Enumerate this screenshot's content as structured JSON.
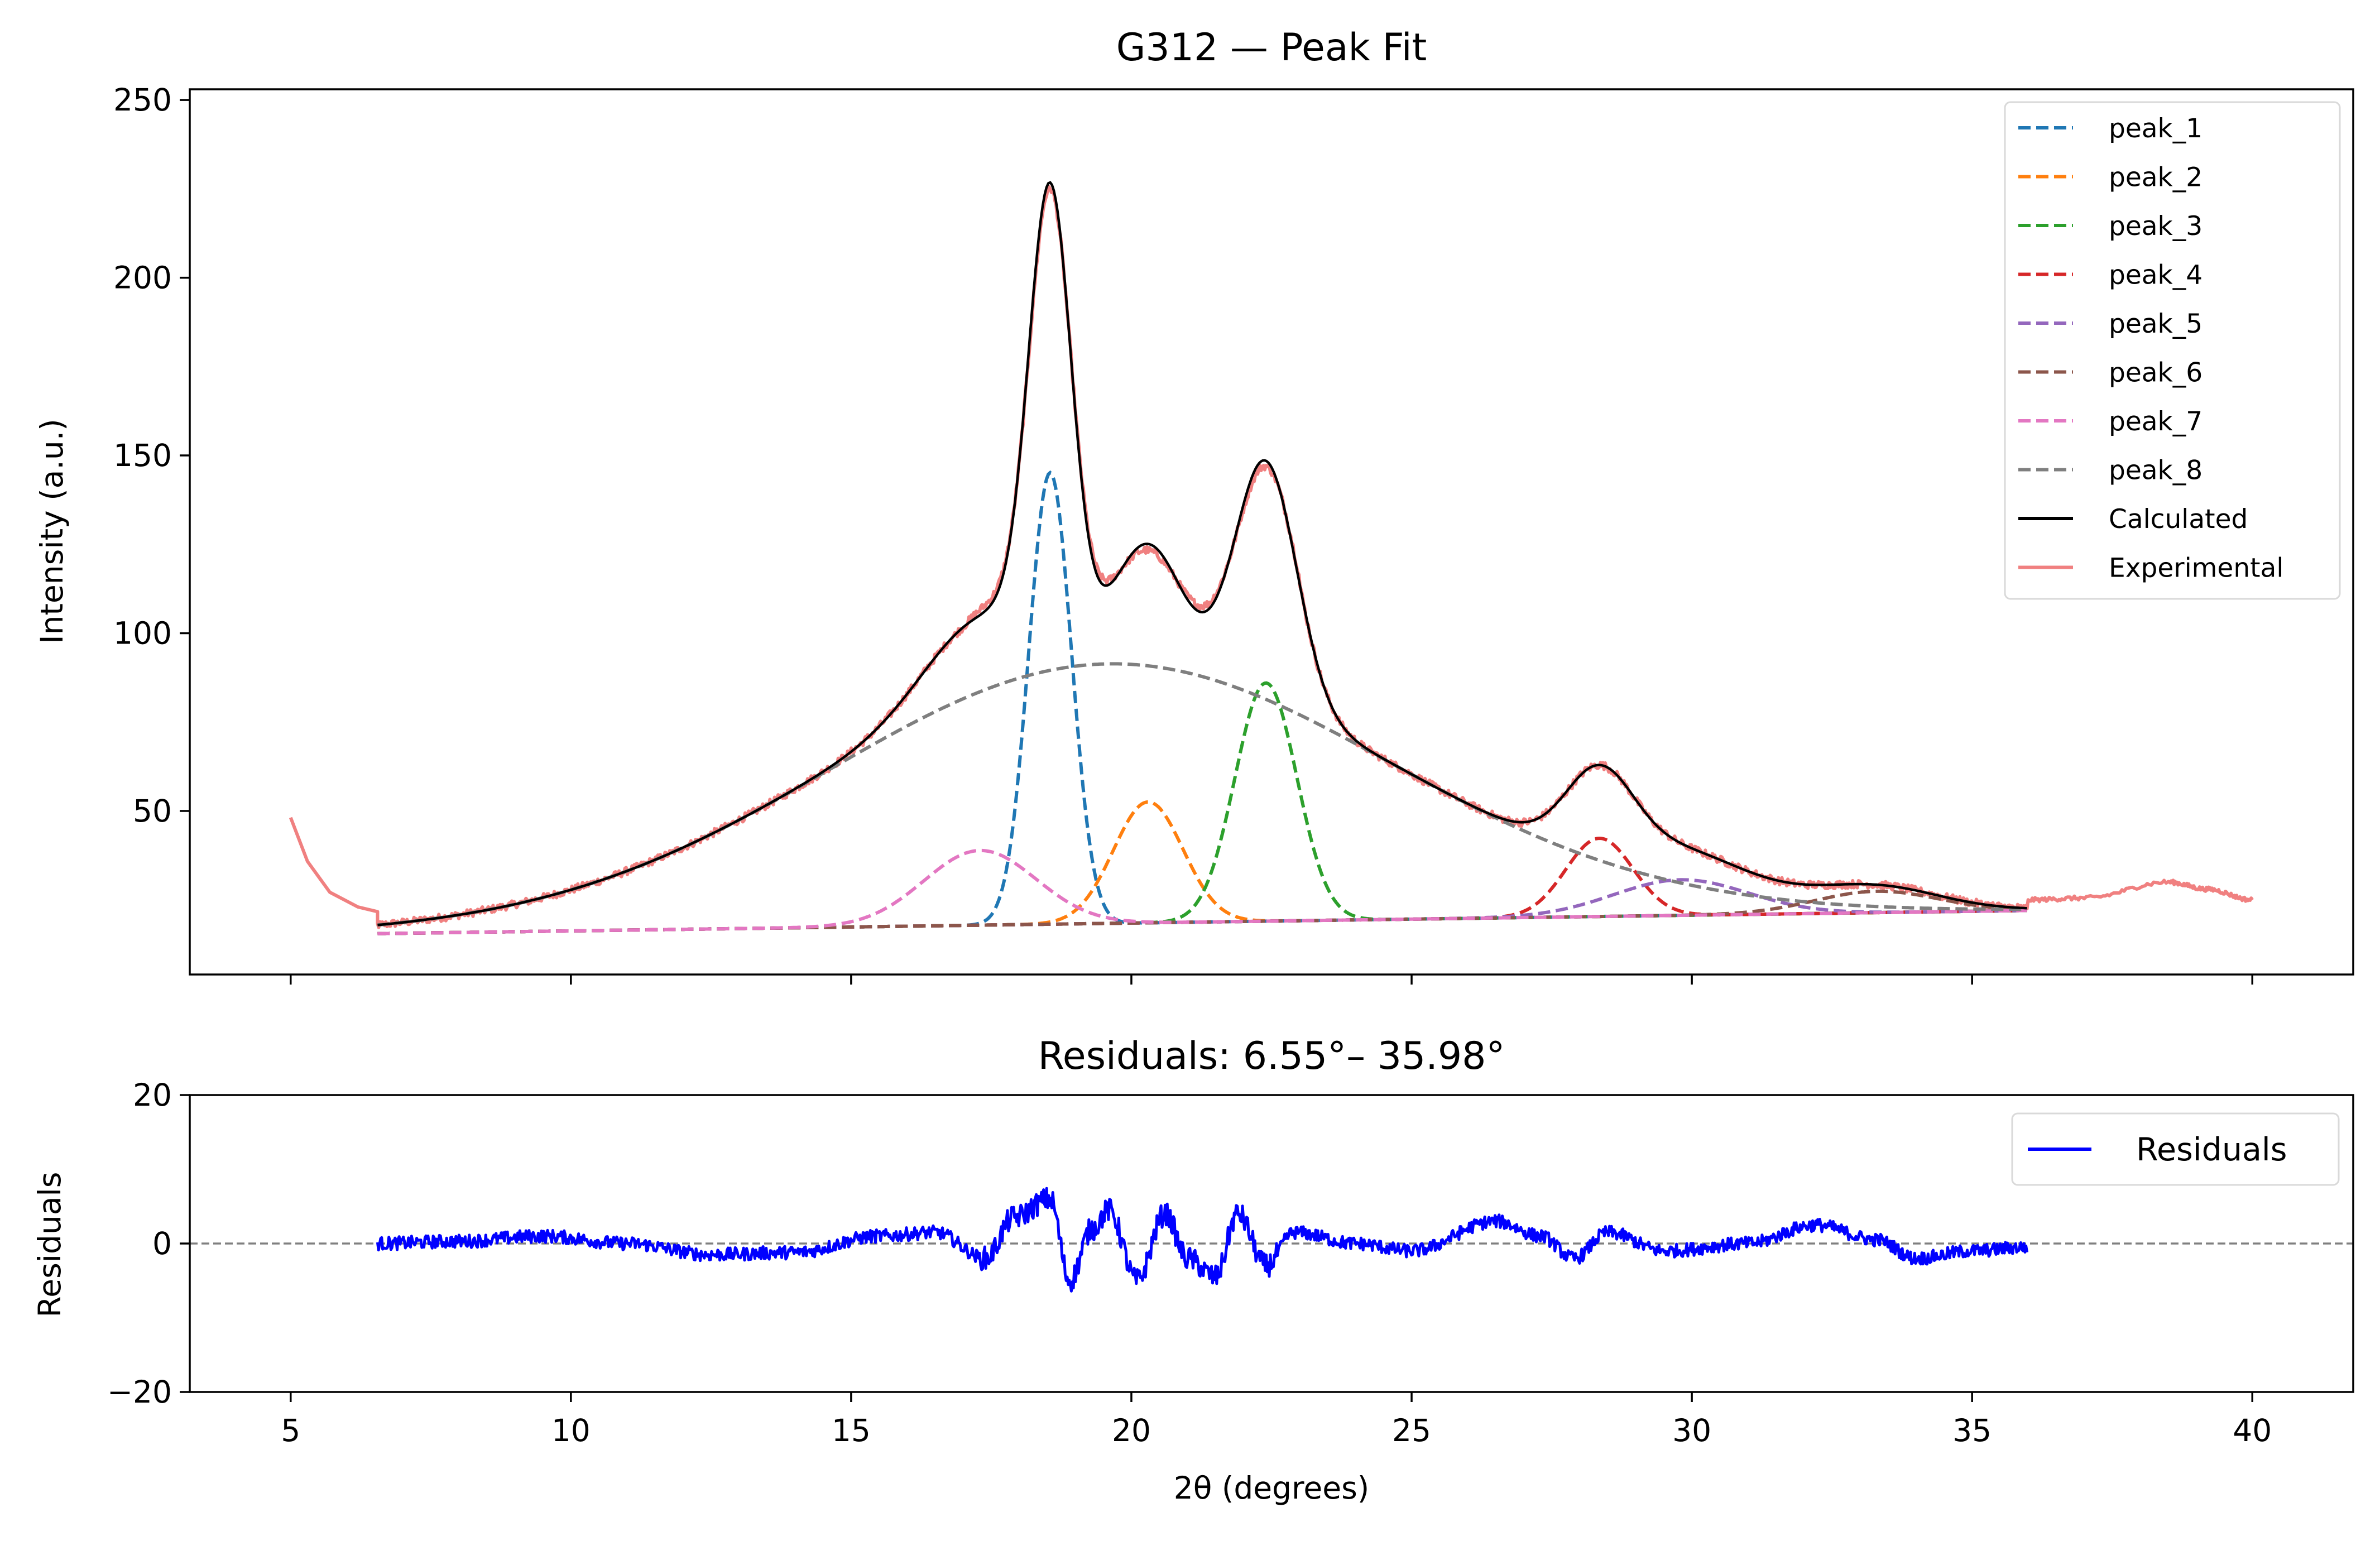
{
  "chart_data": [
    {
      "type": "line",
      "title": "G312 — Peak Fit",
      "xlabel": "",
      "ylabel": "Intensity (a.u.)",
      "xlim": [
        3.2,
        41.8
      ],
      "ylim": [
        4,
        253
      ],
      "xticks": [
        5,
        10,
        15,
        20,
        25,
        30,
        35,
        40
      ],
      "yticks": [
        50,
        100,
        150,
        200,
        250
      ],
      "ytick_labels": [
        "50",
        "100",
        "150",
        "200",
        "250"
      ],
      "legend_position": "top-right",
      "grid": false,
      "series": [
        {
          "name": "peak_1",
          "kind": "peak",
          "color": "#1f77b4",
          "amplitude": 127,
          "center": 18.55,
          "sigma": 0.38
        },
        {
          "name": "peak_2",
          "kind": "peak",
          "color": "#ff7f0e",
          "amplitude": 34,
          "center": 20.3,
          "sigma": 0.62
        },
        {
          "name": "peak_3",
          "kind": "peak",
          "color": "#2ca02c",
          "amplitude": 67,
          "center": 22.4,
          "sigma": 0.55
        },
        {
          "name": "peak_4",
          "kind": "peak",
          "color": "#d62728",
          "amplitude": 22,
          "center": 28.35,
          "sigma": 0.6
        },
        {
          "name": "peak_5",
          "kind": "peak",
          "color": "#9467bd",
          "amplitude": 10,
          "center": 29.8,
          "sigma": 1.2
        },
        {
          "name": "peak_6",
          "kind": "peak",
          "color": "#8c564b",
          "amplitude": 6,
          "center": 33.3,
          "sigma": 1.1
        },
        {
          "name": "peak_7",
          "kind": "peak",
          "color": "#e377c2",
          "amplitude": 21,
          "center": 17.3,
          "sigma": 1.0
        },
        {
          "name": "peak_8",
          "kind": "peak",
          "color": "#7f7f7f",
          "amplitude": 73,
          "center": 19.6,
          "sigma": 5.0
        },
        {
          "name": "Calculated",
          "kind": "sum",
          "color": "#000000"
        },
        {
          "name": "Experimental",
          "kind": "experimental",
          "color": "#f08080"
        }
      ],
      "baseline": {
        "start": [
          6.55,
          15.5
        ],
        "end": [
          35.98,
          22.0
        ]
      },
      "fit_range": [
        6.55,
        35.98
      ],
      "experimental_range": [
        5.0,
        40.0
      ],
      "experimental_extra_points": [
        [
          5.0,
          48
        ],
        [
          5.3,
          36
        ],
        [
          5.7,
          27
        ],
        [
          6.2,
          22.5
        ],
        [
          6.55,
          21.5
        ],
        [
          36.0,
          25
        ],
        [
          37.0,
          25.5
        ],
        [
          38.5,
          30
        ],
        [
          39.2,
          28
        ],
        [
          40.0,
          25
        ]
      ]
    },
    {
      "type": "line",
      "title": "Residuals: 6.55°– 35.98°",
      "xlabel": "2θ (degrees)",
      "ylabel": "Residuals",
      "xlim": [
        3.2,
        41.8
      ],
      "ylim": [
        -20,
        20
      ],
      "xticks": [
        5,
        10,
        15,
        20,
        25,
        30,
        35,
        40
      ],
      "yticks": [
        -20,
        0,
        20
      ],
      "ytick_labels": [
        "−20",
        "0",
        "20"
      ],
      "zero_line": true,
      "legend_position": "top-right",
      "grid": false,
      "series": [
        {
          "name": "Residuals",
          "color": "#0000ff",
          "envelope": [
            [
              6.55,
              0
            ],
            [
              8,
              0.3
            ],
            [
              9.5,
              1
            ],
            [
              11,
              0
            ],
            [
              12.5,
              -1.5
            ],
            [
              14,
              -1.2
            ],
            [
              15.5,
              1
            ],
            [
              16.5,
              1.5
            ],
            [
              17.4,
              -2
            ],
            [
              17.9,
              3.5
            ],
            [
              18.55,
              6
            ],
            [
              18.9,
              -5
            ],
            [
              19.3,
              2
            ],
            [
              19.6,
              4.5
            ],
            [
              20.1,
              -5
            ],
            [
              20.6,
              4
            ],
            [
              21.0,
              -2
            ],
            [
              21.5,
              -4.5
            ],
            [
              21.9,
              4
            ],
            [
              22.4,
              -3
            ],
            [
              22.9,
              1.5
            ],
            [
              24,
              0
            ],
            [
              25,
              -1
            ],
            [
              26.5,
              3
            ],
            [
              27.3,
              1
            ],
            [
              27.9,
              -2
            ],
            [
              28.5,
              1.5
            ],
            [
              29.5,
              -1
            ],
            [
              31,
              0
            ],
            [
              32.2,
              2.5
            ],
            [
              33.3,
              0.5
            ],
            [
              34,
              -2
            ],
            [
              35,
              -1
            ],
            [
              35.98,
              -0.5
            ]
          ]
        }
      ]
    }
  ]
}
